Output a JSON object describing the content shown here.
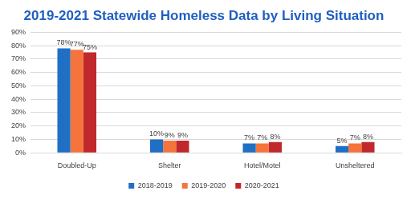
{
  "chart_data": {
    "type": "bar",
    "title": "2019-2021 Statewide Homeless Data by Living Situation",
    "categories": [
      "Doubled-Up",
      "Shelter",
      "Hotel/Motel",
      "Unsheltered"
    ],
    "series": [
      {
        "name": "2018-2019",
        "color": "#1f6fc4",
        "values": [
          78,
          10,
          7,
          5
        ],
        "value_labels": [
          "78%",
          "10%",
          "7%",
          "5%"
        ]
      },
      {
        "name": "2019-2020",
        "color": "#f4743b",
        "values": [
          77,
          9,
          7,
          7
        ],
        "value_labels": [
          "77%",
          "9%",
          "7%",
          "7%"
        ]
      },
      {
        "name": "2020-2021",
        "color": "#c0282b",
        "values": [
          75,
          9,
          8,
          8
        ],
        "value_labels": [
          "75%",
          "9%",
          "8%",
          "8%"
        ]
      }
    ],
    "ylim": [
      0,
      90
    ],
    "yticks": [
      {
        "value": 0,
        "label": "0%"
      },
      {
        "value": 10,
        "label": "10%"
      },
      {
        "value": 20,
        "label": "20%"
      },
      {
        "value": 30,
        "label": "30%"
      },
      {
        "value": 40,
        "label": "40%"
      },
      {
        "value": 50,
        "label": "50%"
      },
      {
        "value": 60,
        "label": "60%"
      },
      {
        "value": 70,
        "label": "70%"
      },
      {
        "value": 80,
        "label": "80%"
      },
      {
        "value": 90,
        "label": "90%"
      }
    ],
    "grid": true,
    "legend": "bottom",
    "data_labels": true
  }
}
